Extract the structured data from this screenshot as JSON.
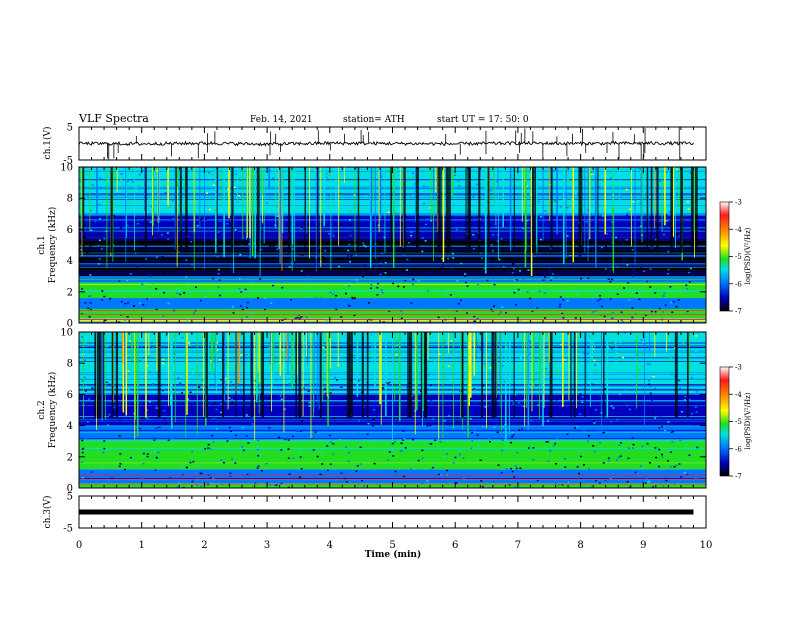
{
  "header": {
    "title": "VLF Spectra",
    "date": "Feb. 14, 2021",
    "station": "station= ATH",
    "start": "start UT =   17: 50: 0"
  },
  "colorbar": {
    "label": "log(PSD)(V²/Hz)",
    "ticks": [
      "-3",
      "-4",
      "-5",
      "-6",
      "-7"
    ],
    "colors": [
      "#ffffff",
      "#ff1a1a",
      "#ff9900",
      "#ffff00",
      "#22dd22",
      "#00e0e0",
      "#0077ff",
      "#0000bb",
      "#000000"
    ]
  },
  "chart_data": [
    {
      "type": "line",
      "panel": "ch1-waveform",
      "ylabel": "ch.1(V)",
      "ylim": [
        -5,
        5
      ],
      "yticks": [
        "5",
        "-5"
      ],
      "x": [
        0,
        1,
        2,
        3,
        4,
        5,
        6,
        7,
        8,
        9,
        9.8
      ],
      "y": [
        0,
        -0.1,
        0.1,
        -0.2,
        0.1,
        0.0,
        -0.1,
        0.1,
        0.0,
        0.1,
        0.0
      ]
    },
    {
      "type": "heatmap",
      "panel": "ch1-spectrogram",
      "ylabel": "ch.1\nFrequency (kHz)",
      "ylim": [
        0,
        10
      ],
      "yticks": [
        "0",
        "2",
        "4",
        "6",
        "8",
        "10"
      ],
      "bands_khz": [
        {
          "from": 0.0,
          "to": 0.3,
          "level": -4.5
        },
        {
          "from": 0.3,
          "to": 0.9,
          "level": -5.0
        },
        {
          "from": 0.9,
          "to": 1.6,
          "level": -6.0
        },
        {
          "from": 1.6,
          "to": 2.6,
          "level": -5.0
        },
        {
          "from": 2.6,
          "to": 3.0,
          "level": -6.0
        },
        {
          "from": 3.0,
          "to": 5.5,
          "level": -7.0
        },
        {
          "from": 5.5,
          "to": 7.0,
          "level": -6.5
        },
        {
          "from": 7.0,
          "to": 10.0,
          "level": -5.5
        }
      ]
    },
    {
      "type": "heatmap",
      "panel": "ch2-spectrogram",
      "ylabel": "ch.2\nFrequency (kHz)",
      "ylim": [
        0,
        10
      ],
      "yticks": [
        "0",
        "2",
        "4",
        "6",
        "8",
        "10"
      ],
      "bands_khz": [
        {
          "from": 0.0,
          "to": 0.3,
          "level": -5.0
        },
        {
          "from": 0.3,
          "to": 1.2,
          "level": -6.0
        },
        {
          "from": 1.2,
          "to": 3.2,
          "level": -5.0
        },
        {
          "from": 3.2,
          "to": 4.0,
          "level": -6.0
        },
        {
          "from": 4.0,
          "to": 6.0,
          "level": -6.5
        },
        {
          "from": 6.0,
          "to": 10.0,
          "level": -5.5
        }
      ]
    },
    {
      "type": "line",
      "panel": "ch3-waveform",
      "ylabel": "ch.3(V)",
      "ylim": [
        -5,
        5
      ],
      "yticks": [
        "5",
        "-5"
      ],
      "x": [
        0,
        9.8
      ],
      "y": [
        0,
        0
      ]
    }
  ],
  "xaxis": {
    "label": "Time  (min)",
    "ticks": [
      "0",
      "1",
      "2",
      "3",
      "4",
      "5",
      "6",
      "7",
      "8",
      "9",
      "10"
    ],
    "xlim": [
      0,
      10
    ]
  }
}
